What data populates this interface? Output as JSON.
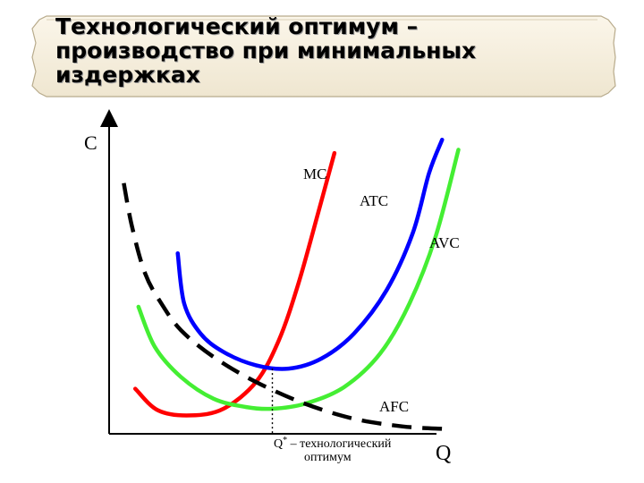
{
  "title_lines": [
    "Технологический оптимум –",
    "производство при минимальных",
    "издержках"
  ],
  "chart_data": {
    "type": "line",
    "title": "Технологический оптимум – производство при минимальных издержках",
    "ylabel": "C",
    "xlabel": "Q",
    "grid": false,
    "legend": "none (labels placed next to curves)",
    "series": [
      {
        "name": "MC",
        "color": "#ff0000",
        "style": "solid",
        "points": [
          [
            0.8,
            1.35
          ],
          [
            1.5,
            0.7
          ],
          [
            2.5,
            0.55
          ],
          [
            3.5,
            0.75
          ],
          [
            4.5,
            1.55
          ],
          [
            5.2,
            2.8
          ],
          [
            5.8,
            4.5
          ],
          [
            6.4,
            6.6
          ],
          [
            6.9,
            8.4
          ]
        ]
      },
      {
        "name": "ATC",
        "color": "#0000ff",
        "style": "solid",
        "points": [
          [
            2.1,
            5.4
          ],
          [
            2.3,
            3.9
          ],
          [
            2.8,
            3.0
          ],
          [
            3.5,
            2.45
          ],
          [
            4.5,
            2.05
          ],
          [
            5.5,
            1.95
          ],
          [
            6.5,
            2.25
          ],
          [
            7.5,
            3.0
          ],
          [
            8.5,
            4.3
          ],
          [
            9.3,
            6.0
          ],
          [
            9.8,
            7.8
          ],
          [
            10.2,
            8.8
          ]
        ]
      },
      {
        "name": "AVC",
        "color": "#44ee33",
        "style": "solid",
        "points": [
          [
            0.9,
            3.8
          ],
          [
            1.4,
            2.6
          ],
          [
            2.2,
            1.7
          ],
          [
            3.2,
            1.05
          ],
          [
            4.2,
            0.8
          ],
          [
            5.0,
            0.75
          ],
          [
            6.0,
            0.9
          ],
          [
            7.2,
            1.4
          ],
          [
            8.3,
            2.4
          ],
          [
            9.2,
            3.9
          ],
          [
            10.0,
            5.9
          ],
          [
            10.7,
            8.5
          ]
        ]
      },
      {
        "name": "AFC",
        "color": "#000000",
        "style": "dashed",
        "points": [
          [
            0.45,
            7.5
          ],
          [
            0.7,
            6.2
          ],
          [
            1.1,
            4.8
          ],
          [
            1.6,
            3.9
          ],
          [
            2.2,
            3.1
          ],
          [
            3.2,
            2.3
          ],
          [
            4.5,
            1.55
          ],
          [
            6.0,
            0.9
          ],
          [
            7.5,
            0.45
          ],
          [
            9.0,
            0.22
          ],
          [
            10.2,
            0.15
          ]
        ]
      }
    ],
    "annotations": [
      {
        "text": "Q",
        "sup": "*",
        "suffix": " – технологический",
        "line2": "оптимум",
        "x": 5.0,
        "y": 1.95
      }
    ],
    "xlim": [
      0,
      12
    ],
    "ylim": [
      0,
      9.5
    ]
  }
}
